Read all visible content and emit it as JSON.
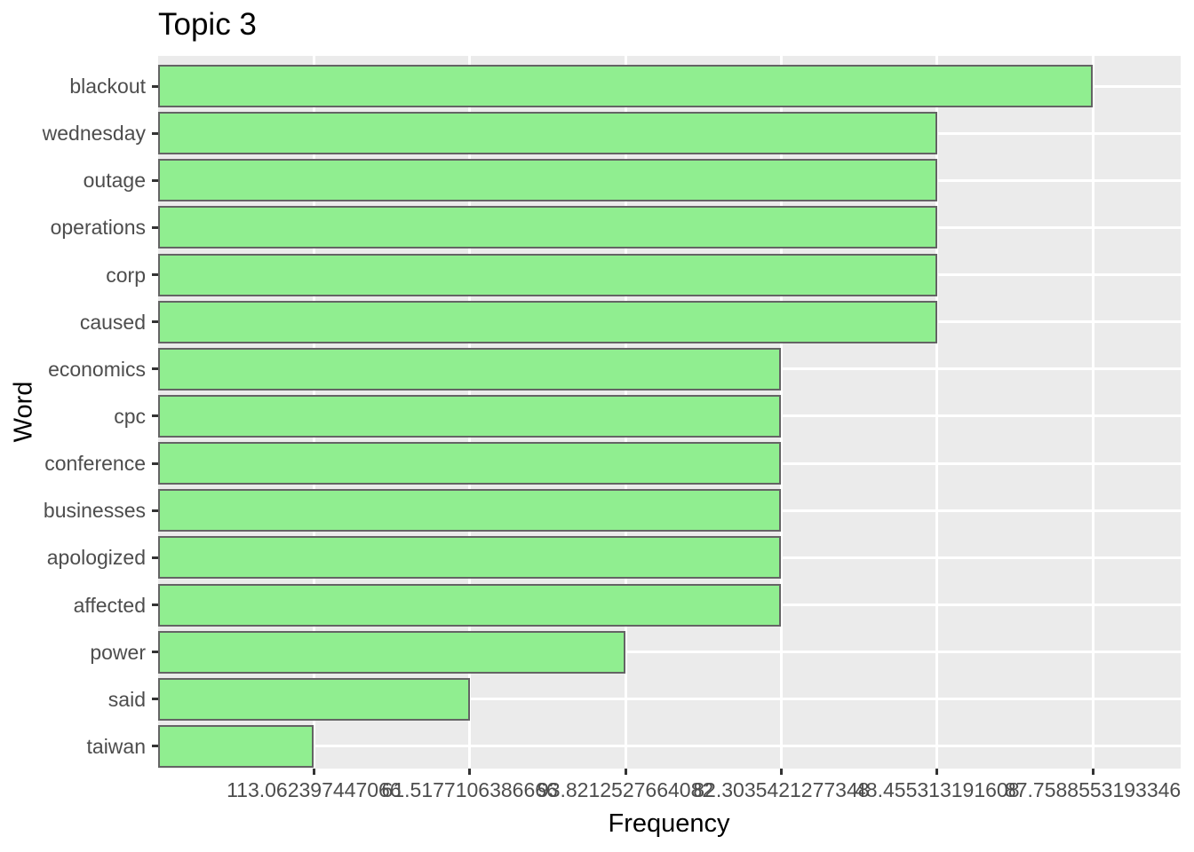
{
  "title": "Topic 3",
  "axes": {
    "x_label": "Frequency",
    "y_label": "Word"
  },
  "chart_data": {
    "type": "bar",
    "orientation": "horizontal",
    "title": "Topic 3",
    "xlabel": "Frequency",
    "ylabel": "Word",
    "categories": [
      "blackout",
      "wednesday",
      "outage",
      "operations",
      "corp",
      "caused",
      "economics",
      "cpc",
      "conference",
      "businesses",
      "apologized",
      "affected",
      "power",
      "said",
      "taiwan"
    ],
    "values": [
      6,
      5,
      5,
      5,
      5,
      5,
      4,
      4,
      4,
      4,
      4,
      4,
      3,
      2,
      1
    ],
    "x_tick_positions": [
      1,
      2,
      3,
      4,
      5,
      6
    ],
    "x_tick_labels": [
      "113.062397447066",
      "61.5177106386666",
      "93.8212527664082",
      "82.3035421277348",
      "48.455313191608",
      "87.7588553193346"
    ],
    "xlim": [
      0,
      6.57
    ],
    "grid": "major-white-on-gray",
    "legend": "none",
    "bar_width_fraction": 0.9,
    "colors": {
      "bar_fill": "#90EE90",
      "bar_border": "#646464",
      "panel_bg": "#EBEBEB",
      "gridline": "#FFFFFF",
      "axis_text": "#4D4D4D",
      "tick_mark": "#333333",
      "title_text": "#000000",
      "page_bg": "#FFFFFF"
    }
  }
}
